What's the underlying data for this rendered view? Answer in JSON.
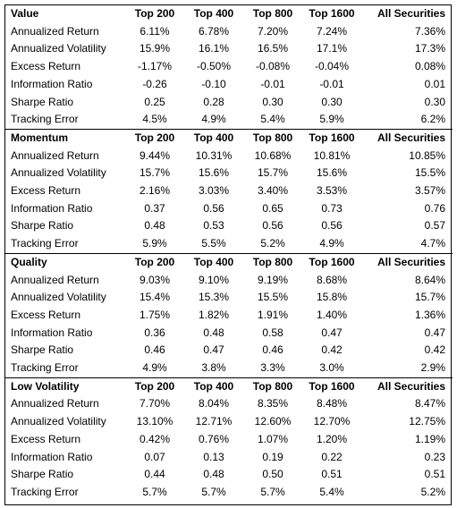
{
  "columns": [
    "Top 200",
    "Top 400",
    "Top 800",
    "Top 1600",
    "All Securities"
  ],
  "sections": [
    {
      "name": "Value",
      "rows": [
        {
          "metric": "Annualized Return",
          "values": [
            "6.11%",
            "6.78%",
            "7.20%",
            "7.24%",
            "7.36%"
          ]
        },
        {
          "metric": "Annualized Volatility",
          "values": [
            "15.9%",
            "16.1%",
            "16.5%",
            "17.1%",
            "17.3%"
          ]
        },
        {
          "metric": "Excess Return",
          "values": [
            "-1.17%",
            "-0.50%",
            "-0.08%",
            "-0.04%",
            "0.08%"
          ]
        },
        {
          "metric": "Information Ratio",
          "values": [
            "-0.26",
            "-0.10",
            "-0.01",
            "-0.01",
            "0.01"
          ]
        },
        {
          "metric": "Sharpe Ratio",
          "values": [
            "0.25",
            "0.28",
            "0.30",
            "0.30",
            "0.30"
          ]
        },
        {
          "metric": "Tracking Error",
          "values": [
            "4.5%",
            "4.9%",
            "5.4%",
            "5.9%",
            "6.2%"
          ]
        }
      ]
    },
    {
      "name": "Momentum",
      "rows": [
        {
          "metric": "Annualized Return",
          "values": [
            "9.44%",
            "10.31%",
            "10.68%",
            "10.81%",
            "10.85%"
          ]
        },
        {
          "metric": "Annualized Volatility",
          "values": [
            "15.7%",
            "15.6%",
            "15.7%",
            "15.6%",
            "15.5%"
          ]
        },
        {
          "metric": "Excess Return",
          "values": [
            "2.16%",
            "3.03%",
            "3.40%",
            "3.53%",
            "3.57%"
          ]
        },
        {
          "metric": "Information Ratio",
          "values": [
            "0.37",
            "0.56",
            "0.65",
            "0.73",
            "0.76"
          ]
        },
        {
          "metric": "Sharpe Ratio",
          "values": [
            "0.48",
            "0.53",
            "0.56",
            "0.56",
            "0.57"
          ]
        },
        {
          "metric": "Tracking Error",
          "values": [
            "5.9%",
            "5.5%",
            "5.2%",
            "4.9%",
            "4.7%"
          ]
        }
      ]
    },
    {
      "name": "Quality",
      "rows": [
        {
          "metric": "Annualized Return",
          "values": [
            "9.03%",
            "9.10%",
            "9.19%",
            "8.68%",
            "8.64%"
          ]
        },
        {
          "metric": "Annualized Volatility",
          "values": [
            "15.4%",
            "15.3%",
            "15.5%",
            "15.8%",
            "15.7%"
          ]
        },
        {
          "metric": "Excess Return",
          "values": [
            "1.75%",
            "1.82%",
            "1.91%",
            "1.40%",
            "1.36%"
          ]
        },
        {
          "metric": "Information Ratio",
          "values": [
            "0.36",
            "0.48",
            "0.58",
            "0.47",
            "0.47"
          ]
        },
        {
          "metric": "Sharpe Ratio",
          "values": [
            "0.46",
            "0.47",
            "0.46",
            "0.42",
            "0.42"
          ]
        },
        {
          "metric": "Tracking Error",
          "values": [
            "4.9%",
            "3.8%",
            "3.3%",
            "3.0%",
            "2.9%"
          ]
        }
      ]
    },
    {
      "name": "Low Volatility",
      "rows": [
        {
          "metric": "Annualized Return",
          "values": [
            "7.70%",
            "8.04%",
            "8.35%",
            "8.48%",
            "8.47%"
          ]
        },
        {
          "metric": "Annualized Volatility",
          "values": [
            "13.10%",
            "12.71%",
            "12.60%",
            "12.70%",
            "12.75%"
          ]
        },
        {
          "metric": "Excess Return",
          "values": [
            "0.42%",
            "0.76%",
            "1.07%",
            "1.20%",
            "1.19%"
          ]
        },
        {
          "metric": "Information Ratio",
          "values": [
            "0.07",
            "0.13",
            "0.19",
            "0.22",
            "0.23"
          ]
        },
        {
          "metric": "Sharpe Ratio",
          "values": [
            "0.44",
            "0.48",
            "0.50",
            "0.51",
            "0.51"
          ]
        },
        {
          "metric": "Tracking Error",
          "values": [
            "5.7%",
            "5.7%",
            "5.7%",
            "5.4%",
            "5.2%"
          ]
        }
      ]
    }
  ]
}
